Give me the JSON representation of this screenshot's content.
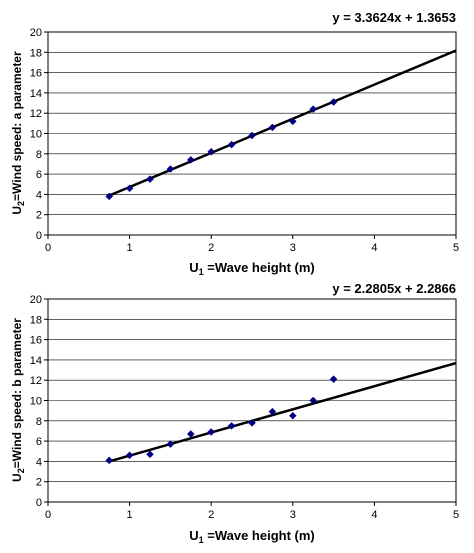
{
  "chart_data": [
    {
      "type": "scatter",
      "annotation": "y = 3.3624x + 1.3653",
      "xlabel_prefix": "U",
      "xlabel_sub": "1",
      "xlabel_rest": " =Wave height (m)",
      "ylabel_prefix": "U",
      "ylabel_sub": "2",
      "ylabel_rest": "=Wind speed: a parameter",
      "xlim": [
        0,
        5
      ],
      "ylim": [
        0,
        20
      ],
      "xticks": [
        "0",
        "1",
        "2",
        "3",
        "4",
        "5"
      ],
      "yticks": [
        "0",
        "2",
        "4",
        "6",
        "8",
        "10",
        "12",
        "14",
        "16",
        "18",
        "20"
      ],
      "grid": "horizontal",
      "series": [
        {
          "x": [
            0.75,
            1.0,
            1.25,
            1.5,
            1.75,
            2.0,
            2.25,
            2.5,
            2.75,
            3.0,
            3.25,
            3.5
          ],
          "y": [
            3.8,
            4.6,
            5.5,
            6.5,
            7.4,
            8.2,
            8.9,
            9.8,
            10.6,
            11.2,
            12.4,
            13.1
          ],
          "color": "#000080"
        }
      ],
      "trendline": {
        "slope": 3.3624,
        "intercept": 1.3653,
        "x_range": [
          0.75,
          5
        ],
        "color": "#000000"
      }
    },
    {
      "type": "scatter",
      "annotation": "y = 2.2805x + 2.2866",
      "xlabel_prefix": "U",
      "xlabel_sub": "1",
      "xlabel_rest": " =Wave height (m)",
      "ylabel_prefix": "U",
      "ylabel_sub": "2",
      "ylabel_rest": "=Wind speed: b parameter",
      "xlim": [
        0,
        5
      ],
      "ylim": [
        0,
        20
      ],
      "xticks": [
        "0",
        "1",
        "2",
        "3",
        "4",
        "5"
      ],
      "yticks": [
        "0",
        "2",
        "4",
        "6",
        "8",
        "10",
        "12",
        "14",
        "16",
        "18",
        "20"
      ],
      "grid": "horizontal",
      "series": [
        {
          "x": [
            0.75,
            1.0,
            1.25,
            1.5,
            1.75,
            2.0,
            2.25,
            2.5,
            2.75,
            3.0,
            3.25,
            3.5
          ],
          "y": [
            4.1,
            4.6,
            4.7,
            5.7,
            6.7,
            6.9,
            7.5,
            7.8,
            8.9,
            8.5,
            10.0,
            12.1
          ],
          "color": "#000080"
        }
      ],
      "trendline": {
        "slope": 2.2805,
        "intercept": 2.2866,
        "x_range": [
          0.75,
          5
        ],
        "color": "#000000"
      }
    }
  ]
}
